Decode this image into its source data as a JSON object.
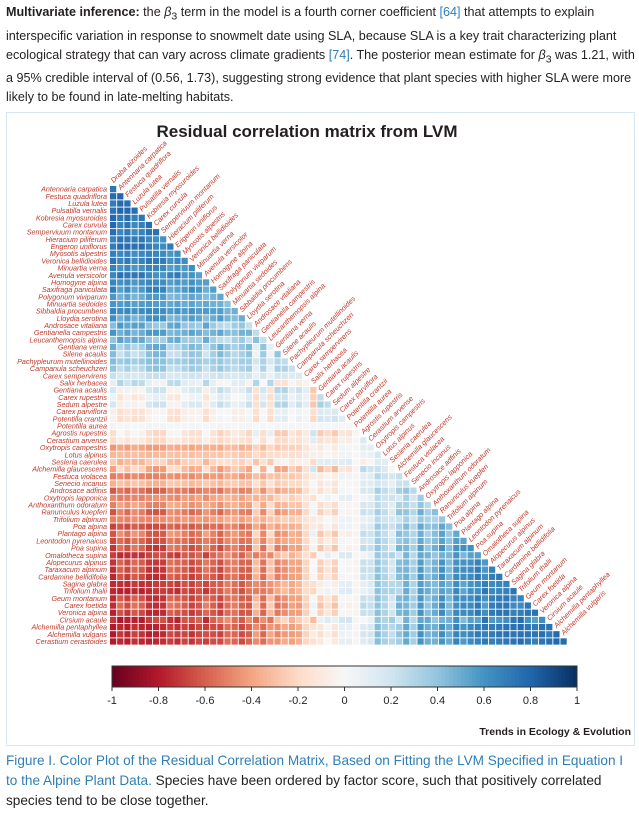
{
  "paragraph": {
    "lead": "Multivariate inference:",
    "t1": " the ",
    "beta_symbol": "β",
    "beta_sub": "3",
    "t2": " term in the model is a fourth corner coefficient ",
    "ref1": "[64]",
    "t3": " that attempts to explain interspecific variation in response to snowmelt date using SLA, because SLA is a key trait characterizing plant ecological strategy that can vary across climate gradients ",
    "ref2": "[74]",
    "t4": ". The posterior mean estimate for ",
    "t5": " was 1.21, with a 95% credible interval of (0.56, 1.73), suggesting strong evidence that plant species with higher SLA were more likely to be found in late-melting habitats."
  },
  "figure": {
    "brand": "Trends in Ecology & Evolution"
  },
  "caption": {
    "lead": "Figure I. Color Plot of the Residual Correlation Matrix, Based on Fitting the LVM Specified in Equation I to the Alpine Plant Data.",
    "body": " Species have been ordered by factor score, such that positively correlated species tend to be close together."
  },
  "chart_data": {
    "type": "heatmap",
    "title": "Residual correlation matrix from LVM",
    "label_color": "#c0392b",
    "colorscale": [
      "#67001f",
      "#b2182b",
      "#d6604d",
      "#f4a582",
      "#fddbc7",
      "#f7f7f7",
      "#d1e5f0",
      "#92c5de",
      "#4393c3",
      "#2166ac",
      "#053061"
    ],
    "colorbar": {
      "range": [
        -1,
        1
      ],
      "ticks": [
        "-1",
        "-0.8",
        "-0.6",
        "-0.4",
        "-0.2",
        "0",
        "0.2",
        "0.4",
        "0.6",
        "0.8",
        "1"
      ]
    },
    "species": [
      "Draba aizoides",
      "Antennaria carpatica",
      "Festuca quadriflora",
      "Luzula lutea",
      "Pulsatilla vernalis",
      "Kobresia myosuroides",
      "Carex curvula",
      "Semperviuum montanum",
      "Hieracium piliferum",
      "Erigeron uniflorus",
      "Myosotis alpestris",
      "Veronica bellidioides",
      "Minuartia verna",
      "Avenula versicolor",
      "Homogyne alpina",
      "Saxifraga paniculata",
      "Polygonum viviparum",
      "Minuartia sedoides",
      "Sibbaldia procumbens",
      "Lloydia serotina",
      "Androsace vitaliana",
      "Gentianella campestris",
      "Leucanthemopsis alpina",
      "Gentiana verna",
      "Silene acaulis",
      "Pachypleurum mutellinoides",
      "Campanula scheuchzeri",
      "Carex sempervirens",
      "Salix herbacea",
      "Gentiana acaulis",
      "Carex rupestris",
      "Sedum alpestre",
      "Carex parviflora",
      "Potentilla crantzii",
      "Potentilla aurea",
      "Agrostis rupestris",
      "Cerastium arvense",
      "Oxytropis campestris",
      "Lotus alpinus",
      "Sesleria caerulea",
      "Alchemilla glaucescens",
      "Festuca violacea",
      "Senecio incanus",
      "Androsace adfinis",
      "Oxytropis lapponica",
      "Anthoxanthum odoratum",
      "Ranunculus kuepferi",
      "Trifolium alpinum",
      "Poa alpina",
      "Plantago alpina",
      "Leontodon pyrenaicus",
      "Poa supina",
      "Omalotheca supina",
      "Alopecurus alpinus",
      "Taraxacum alpinum",
      "Cardamine bellidifolia",
      "Sagina glabra",
      "Trifolium thalii",
      "Geum montanum",
      "Carex foetida",
      "Veronica alpina",
      "Cirsium acaule",
      "Alchemilla pentaphyllea",
      "Alchemilla vulgaris",
      "Cerastium cerastoides"
    ],
    "matrix_source": "factor-ordered residual correlations between species (lower triangle shown); values per cell generated from latent factor scores"
  }
}
